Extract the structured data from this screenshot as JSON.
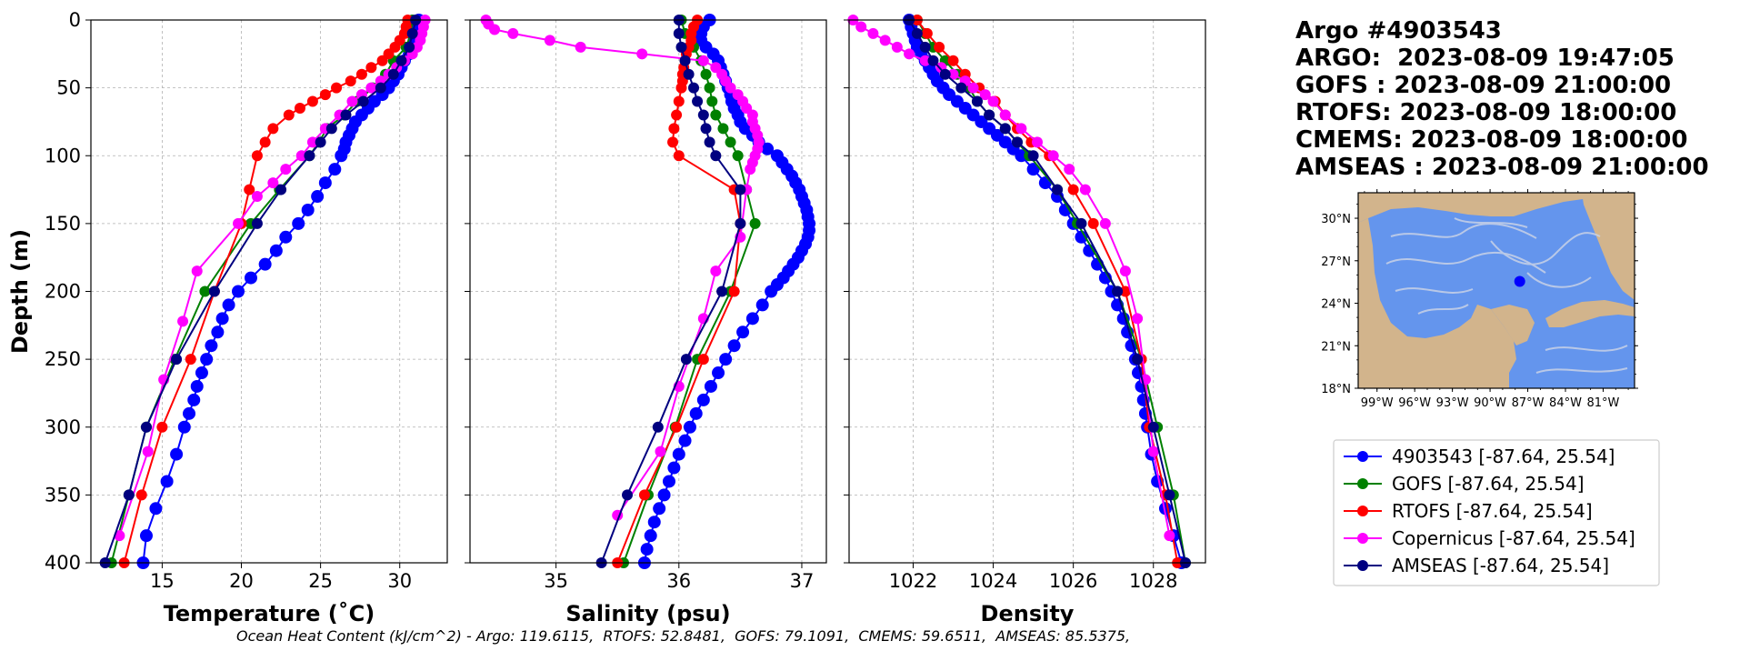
{
  "header": {
    "lines": [
      "Argo #4903543",
      "ARGO:  2023-08-09 19:47:05",
      "GOFS : 2023-08-09 21:00:00",
      "RTOFS: 2023-08-09 18:00:00",
      "CMEMS: 2023-08-09 18:00:00",
      "AMSEAS : 2023-08-09 21:00:00"
    ]
  },
  "footer": "Ocean Heat Content (kJ/cm^2) - Argo: 119.6115,  RTOFS: 52.8481,  GOFS: 79.1091,  CMEMS: 59.6511,  AMSEAS: 85.5375,",
  "map": {
    "lat_labels": [
      "30°N",
      "27°N",
      "24°N",
      "21°N",
      "18°N"
    ],
    "lon_labels": [
      "99°W",
      "96°W",
      "93°W",
      "90°W",
      "87°W",
      "84°W",
      "81°W"
    ],
    "marker_lon": -87.64,
    "marker_lat": 25.54,
    "colors": {
      "land": "#d2b48c",
      "water": "#6495ed",
      "streamlines": "#c8d2e6",
      "marker": "#0000ff"
    }
  },
  "legend": [
    {
      "label": "4903543 [-87.64, 25.54]",
      "color": "#0000ff"
    },
    {
      "label": "GOFS [-87.64, 25.54]",
      "color": "#008000"
    },
    {
      "label": "RTOFS [-87.64, 25.54]",
      "color": "#ff0000"
    },
    {
      "label": "Copernicus [-87.64, 25.54]",
      "color": "#ff00ff"
    },
    {
      "label": "AMSEAS [-87.64, 25.54]",
      "color": "#000080"
    }
  ],
  "chart_data": [
    {
      "type": "line",
      "xlabel": "Temperature (˚C)",
      "ylabel": "Depth (m)",
      "xlim": [
        10.5,
        33
      ],
      "ylim": [
        400,
        0
      ],
      "xticks": [
        15,
        20,
        25,
        30
      ],
      "yticks": [
        0,
        50,
        100,
        150,
        200,
        250,
        300,
        350,
        400
      ],
      "grid": true,
      "series": [
        {
          "color": "#0000ff",
          "depth": [
            0,
            5,
            10,
            15,
            20,
            25,
            30,
            35,
            40,
            45,
            50,
            55,
            60,
            65,
            70,
            75,
            80,
            85,
            90,
            95,
            100,
            110,
            120,
            130,
            140,
            150,
            160,
            170,
            180,
            190,
            200,
            210,
            220,
            230,
            240,
            250,
            260,
            270,
            280,
            290,
            300,
            320,
            340,
            360,
            380,
            400
          ],
          "values": [
            31.2,
            31.1,
            31.0,
            30.9,
            30.8,
            30.6,
            30.3,
            30.1,
            29.9,
            29.6,
            29.3,
            28.9,
            28.4,
            28.0,
            27.6,
            27.2,
            27.0,
            26.8,
            26.6,
            26.5,
            26.3,
            25.9,
            25.3,
            24.8,
            24.2,
            23.6,
            22.8,
            22.2,
            21.5,
            20.6,
            19.8,
            19.2,
            18.8,
            18.5,
            18.1,
            17.8,
            17.5,
            17.2,
            17.0,
            16.7,
            16.4,
            15.9,
            15.3,
            14.6,
            14.0,
            13.8
          ]
        },
        {
          "color": "#008000",
          "depth": [
            0,
            10,
            20,
            30,
            40,
            50,
            60,
            70,
            80,
            90,
            100,
            125,
            150,
            200,
            250,
            300,
            350,
            400
          ],
          "values": [
            30.8,
            30.7,
            30.4,
            29.6,
            29.1,
            28.3,
            27.3,
            26.5,
            25.4,
            24.9,
            24.3,
            22.4,
            20.6,
            17.7,
            15.8,
            14.0,
            12.9,
            11.8
          ]
        },
        {
          "color": "#ff0000",
          "depth": [
            0,
            5,
            10,
            15,
            20,
            25,
            30,
            35,
            40,
            45,
            50,
            55,
            60,
            65,
            70,
            80,
            90,
            100,
            125,
            150,
            200,
            250,
            300,
            350,
            400
          ],
          "values": [
            30.5,
            30.4,
            30.3,
            30.0,
            29.7,
            29.3,
            28.9,
            28.2,
            27.6,
            26.9,
            26.0,
            25.3,
            24.5,
            23.7,
            23.0,
            22.0,
            21.5,
            21.0,
            20.5,
            20.0,
            18.3,
            16.8,
            15.0,
            13.7,
            12.6
          ]
        },
        {
          "color": "#ff00ff",
          "depth": [
            0,
            5,
            10,
            15,
            20,
            25,
            30,
            35,
            40,
            45,
            50,
            55,
            60,
            70,
            80,
            90,
            100,
            110,
            120,
            130,
            150,
            185,
            222,
            265,
            318,
            380
          ],
          "values": [
            31.6,
            31.5,
            31.4,
            31.3,
            31.1,
            30.8,
            30.3,
            29.8,
            29.3,
            28.8,
            28.2,
            27.6,
            27.0,
            26.2,
            25.3,
            24.5,
            23.8,
            22.8,
            22.0,
            21.0,
            19.8,
            17.2,
            16.3,
            15.1,
            14.1,
            12.3
          ]
        },
        {
          "color": "#000080",
          "depth": [
            0,
            10,
            20,
            30,
            40,
            50,
            60,
            70,
            80,
            90,
            100,
            125,
            150,
            200,
            250,
            300,
            350,
            400
          ],
          "values": [
            31.0,
            30.8,
            30.6,
            30.1,
            29.6,
            28.8,
            27.7,
            26.6,
            25.7,
            25.0,
            24.3,
            22.5,
            21.0,
            18.3,
            15.9,
            14.0,
            12.9,
            11.4
          ]
        }
      ]
    },
    {
      "type": "line",
      "xlabel": "Salinity (psu)",
      "xlim": [
        34.3,
        37.2
      ],
      "ylim": [
        400,
        0
      ],
      "xticks": [
        35,
        36,
        37
      ],
      "grid": true,
      "series": [
        {
          "color": "#0000ff",
          "depth": [
            0,
            5,
            10,
            15,
            20,
            25,
            30,
            35,
            40,
            45,
            50,
            55,
            60,
            65,
            70,
            75,
            80,
            85,
            90,
            95,
            100,
            105,
            110,
            115,
            120,
            125,
            130,
            135,
            140,
            145,
            150,
            155,
            160,
            165,
            170,
            175,
            180,
            185,
            190,
            195,
            200,
            210,
            220,
            230,
            240,
            250,
            260,
            270,
            280,
            290,
            300,
            310,
            320,
            330,
            340,
            350,
            360,
            370,
            380,
            390,
            400
          ],
          "values": [
            36.25,
            36.2,
            36.18,
            36.18,
            36.22,
            36.28,
            36.32,
            36.34,
            36.36,
            36.38,
            36.4,
            36.42,
            36.43,
            36.45,
            36.48,
            36.5,
            36.54,
            36.6,
            36.65,
            36.72,
            36.8,
            36.84,
            36.88,
            36.92,
            36.95,
            36.98,
            37.0,
            37.02,
            37.04,
            37.05,
            37.06,
            37.06,
            37.05,
            37.03,
            37.0,
            36.97,
            36.93,
            36.89,
            36.85,
            36.8,
            36.75,
            36.68,
            36.6,
            36.52,
            36.45,
            36.38,
            36.32,
            36.26,
            36.2,
            36.14,
            36.09,
            36.05,
            36.0,
            35.96,
            35.92,
            35.88,
            35.84,
            35.8,
            35.77,
            35.74,
            35.72
          ]
        },
        {
          "color": "#008000",
          "depth": [
            0,
            10,
            20,
            30,
            40,
            50,
            60,
            70,
            80,
            90,
            100,
            125,
            150,
            200,
            250,
            300,
            350,
            400
          ],
          "values": [
            36.02,
            36.05,
            36.12,
            36.18,
            36.22,
            36.25,
            36.27,
            36.3,
            36.36,
            36.42,
            36.48,
            36.55,
            36.62,
            36.42,
            36.15,
            35.97,
            35.75,
            35.55
          ]
        },
        {
          "color": "#ff0000",
          "depth": [
            0,
            5,
            10,
            15,
            20,
            25,
            30,
            35,
            40,
            45,
            50,
            60,
            70,
            80,
            90,
            100,
            125,
            150,
            200,
            250,
            300,
            350,
            400
          ],
          "values": [
            36.15,
            36.12,
            36.1,
            36.1,
            36.08,
            36.06,
            36.05,
            36.04,
            36.03,
            36.03,
            36.02,
            36.0,
            35.98,
            35.96,
            35.95,
            36.0,
            36.45,
            36.5,
            36.45,
            36.2,
            35.98,
            35.72,
            35.5
          ]
        },
        {
          "color": "#ff00ff",
          "depth": [
            0,
            3,
            7,
            10,
            15,
            20,
            25,
            30,
            35,
            40,
            45,
            50,
            55,
            60,
            65,
            70,
            75,
            80,
            85,
            90,
            95,
            100,
            105,
            110,
            125,
            160,
            185,
            220,
            270,
            318,
            365
          ],
          "values": [
            34.43,
            34.45,
            34.5,
            34.65,
            34.95,
            35.2,
            35.7,
            36.2,
            36.3,
            36.35,
            36.38,
            36.42,
            36.48,
            36.52,
            36.55,
            36.6,
            36.6,
            36.62,
            36.64,
            36.65,
            36.64,
            36.62,
            36.6,
            36.58,
            36.55,
            36.5,
            36.3,
            36.2,
            36.0,
            35.85,
            35.5
          ]
        },
        {
          "color": "#000080",
          "depth": [
            0,
            10,
            20,
            30,
            40,
            50,
            60,
            70,
            80,
            90,
            100,
            125,
            150,
            200,
            250,
            300,
            350,
            400
          ],
          "values": [
            36.0,
            36.0,
            36.02,
            36.05,
            36.08,
            36.12,
            36.15,
            36.2,
            36.22,
            36.25,
            36.3,
            36.5,
            36.5,
            36.35,
            36.06,
            35.83,
            35.58,
            35.37
          ]
        }
      ]
    },
    {
      "type": "line",
      "xlabel": "Density",
      "xlim": [
        1020.4,
        1029.3
      ],
      "ylim": [
        400,
        0
      ],
      "xticks": [
        1022,
        1024,
        1026,
        1028
      ],
      "grid": true,
      "series": [
        {
          "color": "#0000ff",
          "depth": [
            0,
            5,
            10,
            15,
            20,
            25,
            30,
            35,
            40,
            45,
            50,
            55,
            60,
            65,
            70,
            75,
            80,
            85,
            90,
            95,
            100,
            110,
            120,
            130,
            140,
            150,
            160,
            170,
            180,
            190,
            200,
            210,
            220,
            230,
            240,
            250,
            260,
            270,
            280,
            290,
            300,
            320,
            340,
            360,
            380,
            400
          ],
          "values": [
            1021.9,
            1021.95,
            1022.0,
            1022.05,
            1022.1,
            1022.2,
            1022.3,
            1022.4,
            1022.5,
            1022.6,
            1022.75,
            1022.9,
            1023.1,
            1023.3,
            1023.5,
            1023.7,
            1023.9,
            1024.1,
            1024.3,
            1024.5,
            1024.7,
            1025.0,
            1025.3,
            1025.6,
            1025.8,
            1026.0,
            1026.2,
            1026.4,
            1026.6,
            1026.8,
            1026.95,
            1027.1,
            1027.25,
            1027.35,
            1027.45,
            1027.55,
            1027.62,
            1027.7,
            1027.75,
            1027.8,
            1027.85,
            1027.95,
            1028.1,
            1028.3,
            1028.5,
            1028.7
          ]
        },
        {
          "color": "#008000",
          "depth": [
            0,
            10,
            20,
            30,
            40,
            50,
            60,
            70,
            80,
            90,
            100,
            125,
            150,
            200,
            250,
            300,
            350,
            400
          ],
          "values": [
            1022.1,
            1022.3,
            1022.5,
            1022.8,
            1023.1,
            1023.4,
            1023.6,
            1023.9,
            1024.3,
            1024.6,
            1024.9,
            1025.6,
            1026.1,
            1027.1,
            1027.7,
            1028.1,
            1028.5,
            1028.8
          ]
        },
        {
          "color": "#ff0000",
          "depth": [
            0,
            10,
            20,
            30,
            40,
            50,
            60,
            70,
            80,
            90,
            100,
            125,
            150,
            200,
            250,
            300,
            350,
            400
          ],
          "values": [
            1022.1,
            1022.35,
            1022.65,
            1023.0,
            1023.3,
            1023.65,
            1024.05,
            1024.3,
            1024.6,
            1024.95,
            1025.4,
            1026.0,
            1026.5,
            1027.3,
            1027.7,
            1027.9,
            1028.3,
            1028.6
          ]
        },
        {
          "color": "#ff00ff",
          "depth": [
            0,
            5,
            10,
            15,
            20,
            25,
            30,
            35,
            40,
            45,
            50,
            55,
            60,
            70,
            80,
            90,
            100,
            110,
            125,
            150,
            185,
            220,
            265,
            318,
            380
          ],
          "values": [
            1020.5,
            1020.7,
            1021.0,
            1021.3,
            1021.6,
            1021.9,
            1022.3,
            1022.7,
            1023.0,
            1023.3,
            1023.5,
            1023.8,
            1024.0,
            1024.3,
            1024.7,
            1025.1,
            1025.5,
            1025.9,
            1026.3,
            1026.8,
            1027.3,
            1027.6,
            1027.8,
            1028.0,
            1028.4
          ]
        },
        {
          "color": "#000080",
          "depth": [
            0,
            10,
            20,
            30,
            40,
            50,
            60,
            70,
            80,
            90,
            100,
            125,
            150,
            200,
            250,
            300,
            350,
            400
          ],
          "values": [
            1021.9,
            1022.1,
            1022.3,
            1022.5,
            1022.8,
            1023.2,
            1023.6,
            1023.9,
            1024.3,
            1024.6,
            1025.0,
            1025.6,
            1026.2,
            1027.1,
            1027.6,
            1028.0,
            1028.4,
            1028.8
          ]
        }
      ]
    }
  ]
}
